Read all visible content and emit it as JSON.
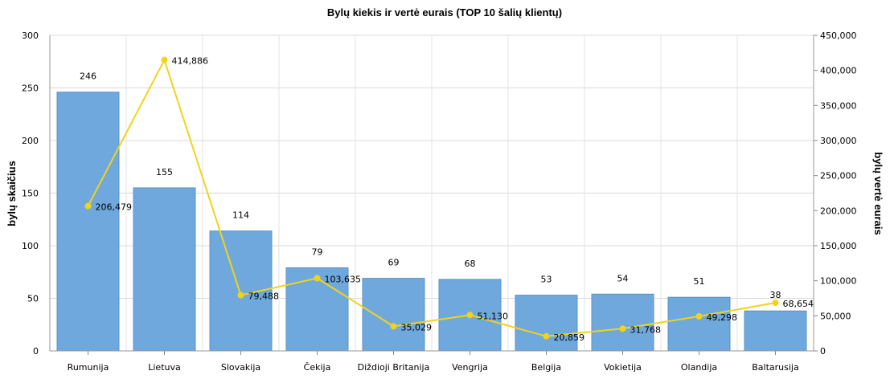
{
  "chart_data": {
    "type": "bar",
    "title": "Bylų kiekis ir vertė eurais (TOP 10 šalių klientų)",
    "ylabel": "bylų skaičius",
    "y2label": "bylų vertė eurais",
    "categories": [
      "Rumunija",
      "Lietuva",
      "Slovakija",
      "Čekija",
      "Diždioji Britanija",
      "Vengrija",
      "Belgija",
      "Vokietija",
      "Olandija",
      "Baltarusija"
    ],
    "series": [
      {
        "type": "bar",
        "axis": "left",
        "color": "#6fa8dc",
        "values": [
          246,
          155,
          114,
          79,
          69,
          68,
          53,
          54,
          51,
          38
        ],
        "labels": [
          "246",
          "155",
          "114",
          "79",
          "69",
          "68",
          "53",
          "54",
          "51",
          "38"
        ]
      },
      {
        "type": "line",
        "axis": "right",
        "color": "#f2d31b",
        "values": [
          206479,
          414886,
          79488,
          103635,
          35029,
          51130,
          20859,
          31768,
          49298,
          68654
        ],
        "labels": [
          "206,479",
          "414,886",
          "79,488",
          "103,635",
          "35,029",
          "51,130",
          "20,859",
          "31,768",
          "49,298",
          "68,654"
        ]
      }
    ],
    "ylim": [
      0,
      300
    ],
    "y2lim": [
      0,
      450000
    ],
    "yticks": [
      "0",
      "50",
      "100",
      "150",
      "200",
      "250",
      "300"
    ],
    "y2ticks": [
      "0",
      "50,000",
      "100,000",
      "150,000",
      "200,000",
      "250,000",
      "300,000",
      "350,000",
      "400,000",
      "450,000"
    ],
    "grid": true,
    "legend": "none"
  }
}
